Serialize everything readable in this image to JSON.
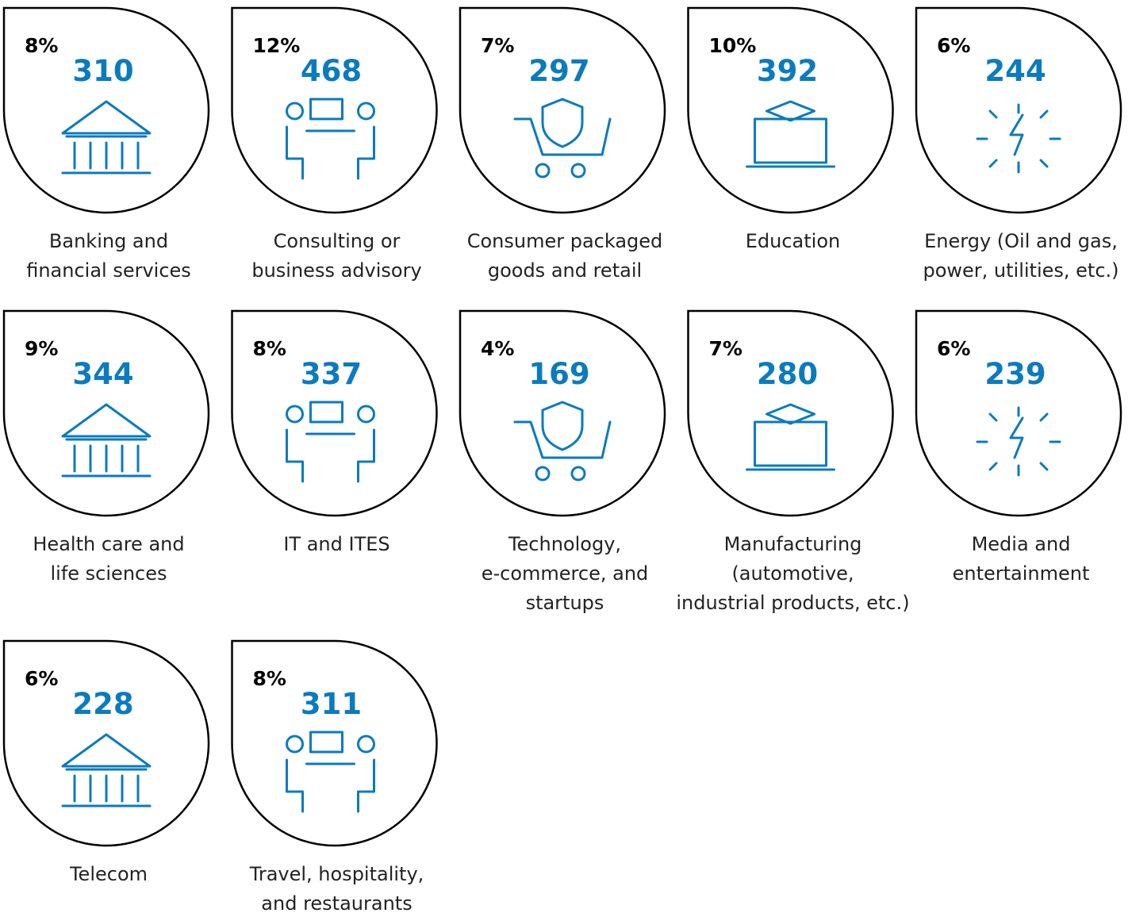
{
  "items": [
    {
      "percent": "8%",
      "count": "310",
      "label": [
        "Banking and",
        "financial services"
      ]
    },
    {
      "percent": "12%",
      "count": "468",
      "label": [
        "Consulting or",
        "business advisory"
      ]
    },
    {
      "percent": "7%",
      "count": "297",
      "label": [
        "Consumer packaged",
        "goods and retail"
      ]
    },
    {
      "percent": "10%",
      "count": "392",
      "label": [
        "Education"
      ]
    },
    {
      "percent": "6%",
      "count": "244",
      "label": [
        "Energy (Oil and gas,",
        "power, utilities, etc.)"
      ]
    },
    {
      "percent": "9%",
      "count": "344",
      "label": [
        "Health care and",
        "life sciences"
      ]
    },
    {
      "percent": "8%",
      "count": "337",
      "label": [
        "IT and ITES"
      ]
    },
    {
      "percent": "4%",
      "count": "169",
      "label": [
        "Technology,",
        "e-commerce, and",
        "startups"
      ]
    },
    {
      "percent": "7%",
      "count": "280",
      "label": [
        "Manufacturing",
        "(automotive,",
        "industrial products, etc.)"
      ]
    },
    {
      "percent": "6%",
      "count": "239",
      "label": [
        "Media and",
        "entertainment"
      ]
    },
    {
      "percent": "6%",
      "count": "228",
      "label": [
        "Telecom"
      ]
    },
    {
      "percent": "8%",
      "count": "311",
      "label": [
        "Travel, hospitality,",
        "and restaurants"
      ]
    }
  ]
}
